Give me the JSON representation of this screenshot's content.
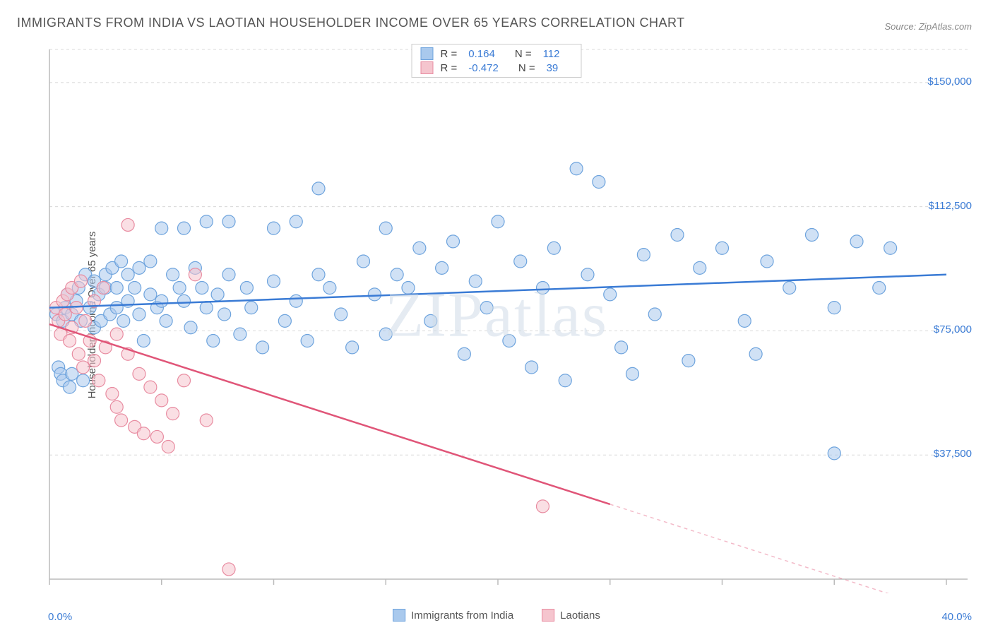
{
  "title": "IMMIGRANTS FROM INDIA VS LAOTIAN HOUSEHOLDER INCOME OVER 65 YEARS CORRELATION CHART",
  "source": "Source: ZipAtlas.com",
  "ylabel": "Householder Income Over 65 years",
  "watermark": "ZIPatlas",
  "chart": {
    "type": "scatter",
    "background_color": "#ffffff",
    "grid_color": "#d8d8d8",
    "axis_color": "#bbbbbb",
    "xlim": [
      0,
      40
    ],
    "ylim": [
      0,
      160000
    ],
    "xticks": [
      0,
      5,
      10,
      15,
      20,
      25,
      30,
      35,
      40
    ],
    "yticks": [
      37500,
      75000,
      112500,
      150000
    ],
    "ytick_labels": [
      "$37,500",
      "$75,000",
      "$112,500",
      "$150,000"
    ],
    "x_axis_min_label": "0.0%",
    "x_axis_max_label": "40.0%",
    "marker_radius": 9,
    "marker_stroke_width": 1.2,
    "trend_line_width": 2.5,
    "series": [
      {
        "name": "Immigrants from India",
        "fill_color": "#a9c9ed",
        "stroke_color": "#6da3dd",
        "trend_color": "#3a7bd5",
        "r_value": "0.164",
        "n_value": "112",
        "trend_start_y": 82000,
        "trend_end_y": 92000,
        "points": [
          [
            0.3,
            80000
          ],
          [
            0.4,
            64000
          ],
          [
            0.5,
            62000
          ],
          [
            0.6,
            78000
          ],
          [
            0.6,
            60000
          ],
          [
            0.7,
            82000
          ],
          [
            0.8,
            86000
          ],
          [
            0.9,
            58000
          ],
          [
            1.0,
            80000
          ],
          [
            1.0,
            62000
          ],
          [
            1.2,
            84000
          ],
          [
            1.3,
            88000
          ],
          [
            1.4,
            78000
          ],
          [
            1.5,
            60000
          ],
          [
            1.6,
            92000
          ],
          [
            1.8,
            82000
          ],
          [
            2.0,
            76000
          ],
          [
            2.0,
            90000
          ],
          [
            2.2,
            86000
          ],
          [
            2.3,
            78000
          ],
          [
            2.5,
            88000
          ],
          [
            2.5,
            92000
          ],
          [
            2.7,
            80000
          ],
          [
            2.8,
            94000
          ],
          [
            3.0,
            82000
          ],
          [
            3.0,
            88000
          ],
          [
            3.2,
            96000
          ],
          [
            3.3,
            78000
          ],
          [
            3.5,
            84000
          ],
          [
            3.5,
            92000
          ],
          [
            3.8,
            88000
          ],
          [
            4.0,
            80000
          ],
          [
            4.0,
            94000
          ],
          [
            4.2,
            72000
          ],
          [
            4.5,
            86000
          ],
          [
            4.5,
            96000
          ],
          [
            4.8,
            82000
          ],
          [
            5.0,
            106000
          ],
          [
            5.0,
            84000
          ],
          [
            5.2,
            78000
          ],
          [
            5.5,
            92000
          ],
          [
            5.8,
            88000
          ],
          [
            6.0,
            84000
          ],
          [
            6.0,
            106000
          ],
          [
            6.3,
            76000
          ],
          [
            6.5,
            94000
          ],
          [
            6.8,
            88000
          ],
          [
            7.0,
            82000
          ],
          [
            7.0,
            108000
          ],
          [
            7.3,
            72000
          ],
          [
            7.5,
            86000
          ],
          [
            7.8,
            80000
          ],
          [
            8.0,
            108000
          ],
          [
            8.0,
            92000
          ],
          [
            8.5,
            74000
          ],
          [
            8.8,
            88000
          ],
          [
            9.0,
            82000
          ],
          [
            9.5,
            70000
          ],
          [
            10.0,
            106000
          ],
          [
            10.0,
            90000
          ],
          [
            10.5,
            78000
          ],
          [
            11.0,
            84000
          ],
          [
            11.0,
            108000
          ],
          [
            11.5,
            72000
          ],
          [
            12.0,
            92000
          ],
          [
            12.0,
            118000
          ],
          [
            12.5,
            88000
          ],
          [
            13.0,
            80000
          ],
          [
            13.5,
            70000
          ],
          [
            14.0,
            96000
          ],
          [
            14.5,
            86000
          ],
          [
            15.0,
            106000
          ],
          [
            15.0,
            74000
          ],
          [
            15.5,
            92000
          ],
          [
            16.0,
            88000
          ],
          [
            16.5,
            100000
          ],
          [
            17.0,
            78000
          ],
          [
            17.5,
            94000
          ],
          [
            18.0,
            102000
          ],
          [
            18.5,
            68000
          ],
          [
            19.0,
            90000
          ],
          [
            19.5,
            82000
          ],
          [
            20.0,
            108000
          ],
          [
            20.5,
            72000
          ],
          [
            21.0,
            96000
          ],
          [
            21.5,
            64000
          ],
          [
            22.0,
            88000
          ],
          [
            22.5,
            100000
          ],
          [
            23.0,
            60000
          ],
          [
            23.5,
            124000
          ],
          [
            24.0,
            92000
          ],
          [
            24.5,
            120000
          ],
          [
            25.0,
            86000
          ],
          [
            25.5,
            70000
          ],
          [
            26.0,
            62000
          ],
          [
            26.5,
            98000
          ],
          [
            27.0,
            80000
          ],
          [
            28.0,
            104000
          ],
          [
            28.5,
            66000
          ],
          [
            29.0,
            94000
          ],
          [
            30.0,
            100000
          ],
          [
            31.0,
            78000
          ],
          [
            31.5,
            68000
          ],
          [
            32.0,
            96000
          ],
          [
            33.0,
            88000
          ],
          [
            34.0,
            104000
          ],
          [
            35.0,
            38000
          ],
          [
            35.0,
            82000
          ],
          [
            36.0,
            102000
          ],
          [
            37.0,
            88000
          ],
          [
            37.5,
            100000
          ]
        ]
      },
      {
        "name": "Laotians",
        "fill_color": "#f5c5ce",
        "stroke_color": "#e88ba0",
        "trend_color": "#e05578",
        "r_value": "-0.472",
        "n_value": "39",
        "trend_start_y": 77000,
        "trend_end_y": -10000,
        "trend_solid_until_x": 25,
        "points": [
          [
            0.3,
            82000
          ],
          [
            0.4,
            78000
          ],
          [
            0.5,
            74000
          ],
          [
            0.6,
            84000
          ],
          [
            0.7,
            80000
          ],
          [
            0.8,
            86000
          ],
          [
            0.9,
            72000
          ],
          [
            1.0,
            88000
          ],
          [
            1.0,
            76000
          ],
          [
            1.2,
            82000
          ],
          [
            1.3,
            68000
          ],
          [
            1.4,
            90000
          ],
          [
            1.5,
            64000
          ],
          [
            1.6,
            78000
          ],
          [
            1.8,
            72000
          ],
          [
            2.0,
            66000
          ],
          [
            2.0,
            84000
          ],
          [
            2.2,
            60000
          ],
          [
            2.4,
            88000
          ],
          [
            2.5,
            70000
          ],
          [
            2.8,
            56000
          ],
          [
            3.0,
            74000
          ],
          [
            3.0,
            52000
          ],
          [
            3.2,
            48000
          ],
          [
            3.5,
            68000
          ],
          [
            3.5,
            107000
          ],
          [
            3.8,
            46000
          ],
          [
            4.0,
            62000
          ],
          [
            4.2,
            44000
          ],
          [
            4.5,
            58000
          ],
          [
            4.8,
            43000
          ],
          [
            5.0,
            54000
          ],
          [
            5.3,
            40000
          ],
          [
            5.5,
            50000
          ],
          [
            6.0,
            60000
          ],
          [
            6.5,
            92000
          ],
          [
            7.0,
            48000
          ],
          [
            8.0,
            3000
          ],
          [
            22.0,
            22000
          ]
        ]
      }
    ]
  },
  "legend_bottom": [
    {
      "label": "Immigrants from India",
      "fill": "#a9c9ed",
      "stroke": "#6da3dd"
    },
    {
      "label": "Laotians",
      "fill": "#f5c5ce",
      "stroke": "#e88ba0"
    }
  ]
}
